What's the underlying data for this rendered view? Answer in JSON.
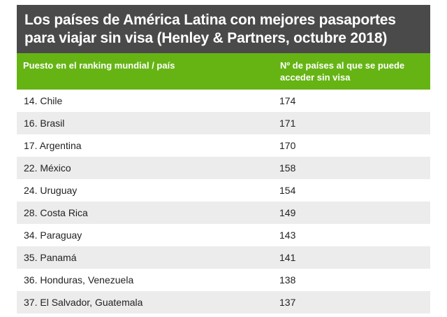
{
  "title": {
    "line1": "Los países de América Latina con mejores pasaportes",
    "line2": "para viajar sin visa (Henley & Partners, octubre 2018)"
  },
  "header": {
    "col1": "Puesto en el ranking mundial / país",
    "col2": "Nº de países al que se puede acceder sin visa"
  },
  "rows": [
    {
      "country": "14. Chile",
      "value": "174"
    },
    {
      "country": "16. Brasil",
      "value": "171"
    },
    {
      "country": "17. Argentina",
      "value": "170"
    },
    {
      "country": "22. México",
      "value": "158"
    },
    {
      "country": "24. Uruguay",
      "value": "154"
    },
    {
      "country": "28. Costa Rica",
      "value": "149"
    },
    {
      "country": "34. Paraguay",
      "value": "143"
    },
    {
      "country": "35. Panamá",
      "value": "141"
    },
    {
      "country": "36. Honduras, Venezuela",
      "value": "138"
    },
    {
      "country": "37. El Salvador, Guatemala",
      "value": "137"
    }
  ],
  "colors": {
    "title_bg": "#4a4a4a",
    "header_bg": "#66b414",
    "row_alt_bg": "#ececec"
  }
}
